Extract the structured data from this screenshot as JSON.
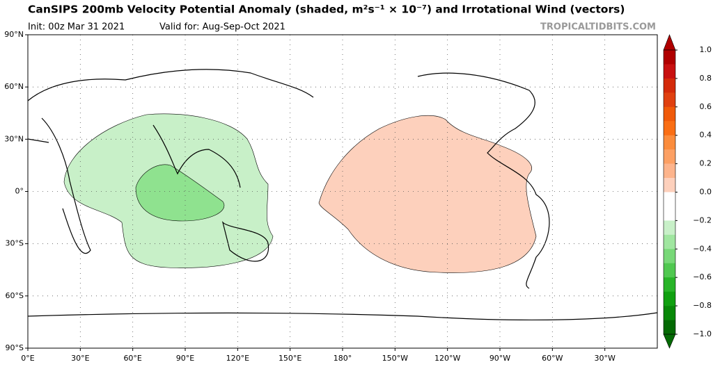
{
  "header": {
    "title": "CanSIPS 200mb Velocity Potential Anomaly (shaded, m²s⁻¹ × 10⁻⁷) and Irrotational Wind (vectors)",
    "init": "Init: 00z Mar 31 2021",
    "valid": "Valid for: Aug-Sep-Oct 2021",
    "credit": "TROPICALTIDBITS.COM"
  },
  "map": {
    "lat_labels": [
      "90°N",
      "60°N",
      "30°N",
      "0°",
      "30°S",
      "60°S",
      "90°S"
    ],
    "lon_labels": [
      "0°E",
      "30°E",
      "60°E",
      "90°E",
      "120°E",
      "150°E",
      "180°",
      "150°W",
      "120°W",
      "90°W",
      "60°W",
      "30°W"
    ]
  },
  "colorbar": {
    "ticks": [
      "1.0",
      "0.8",
      "0.6",
      "0.4",
      "0.2",
      "0.0",
      "−0.2",
      "−0.4",
      "−0.6",
      "−0.8",
      "−1.0"
    ],
    "colors": [
      "#b00000",
      "#c81010",
      "#d42a0a",
      "#e04010",
      "#f05a0a",
      "#fa6e14",
      "#fb8c3c",
      "#fca064",
      "#fdb48c",
      "#fdd0bc",
      "#ffffff",
      "#ffffff",
      "#c8f0c8",
      "#a0e6a0",
      "#78d878",
      "#50c850",
      "#28b428",
      "#10a010",
      "#088808",
      "#046a04"
    ]
  }
}
